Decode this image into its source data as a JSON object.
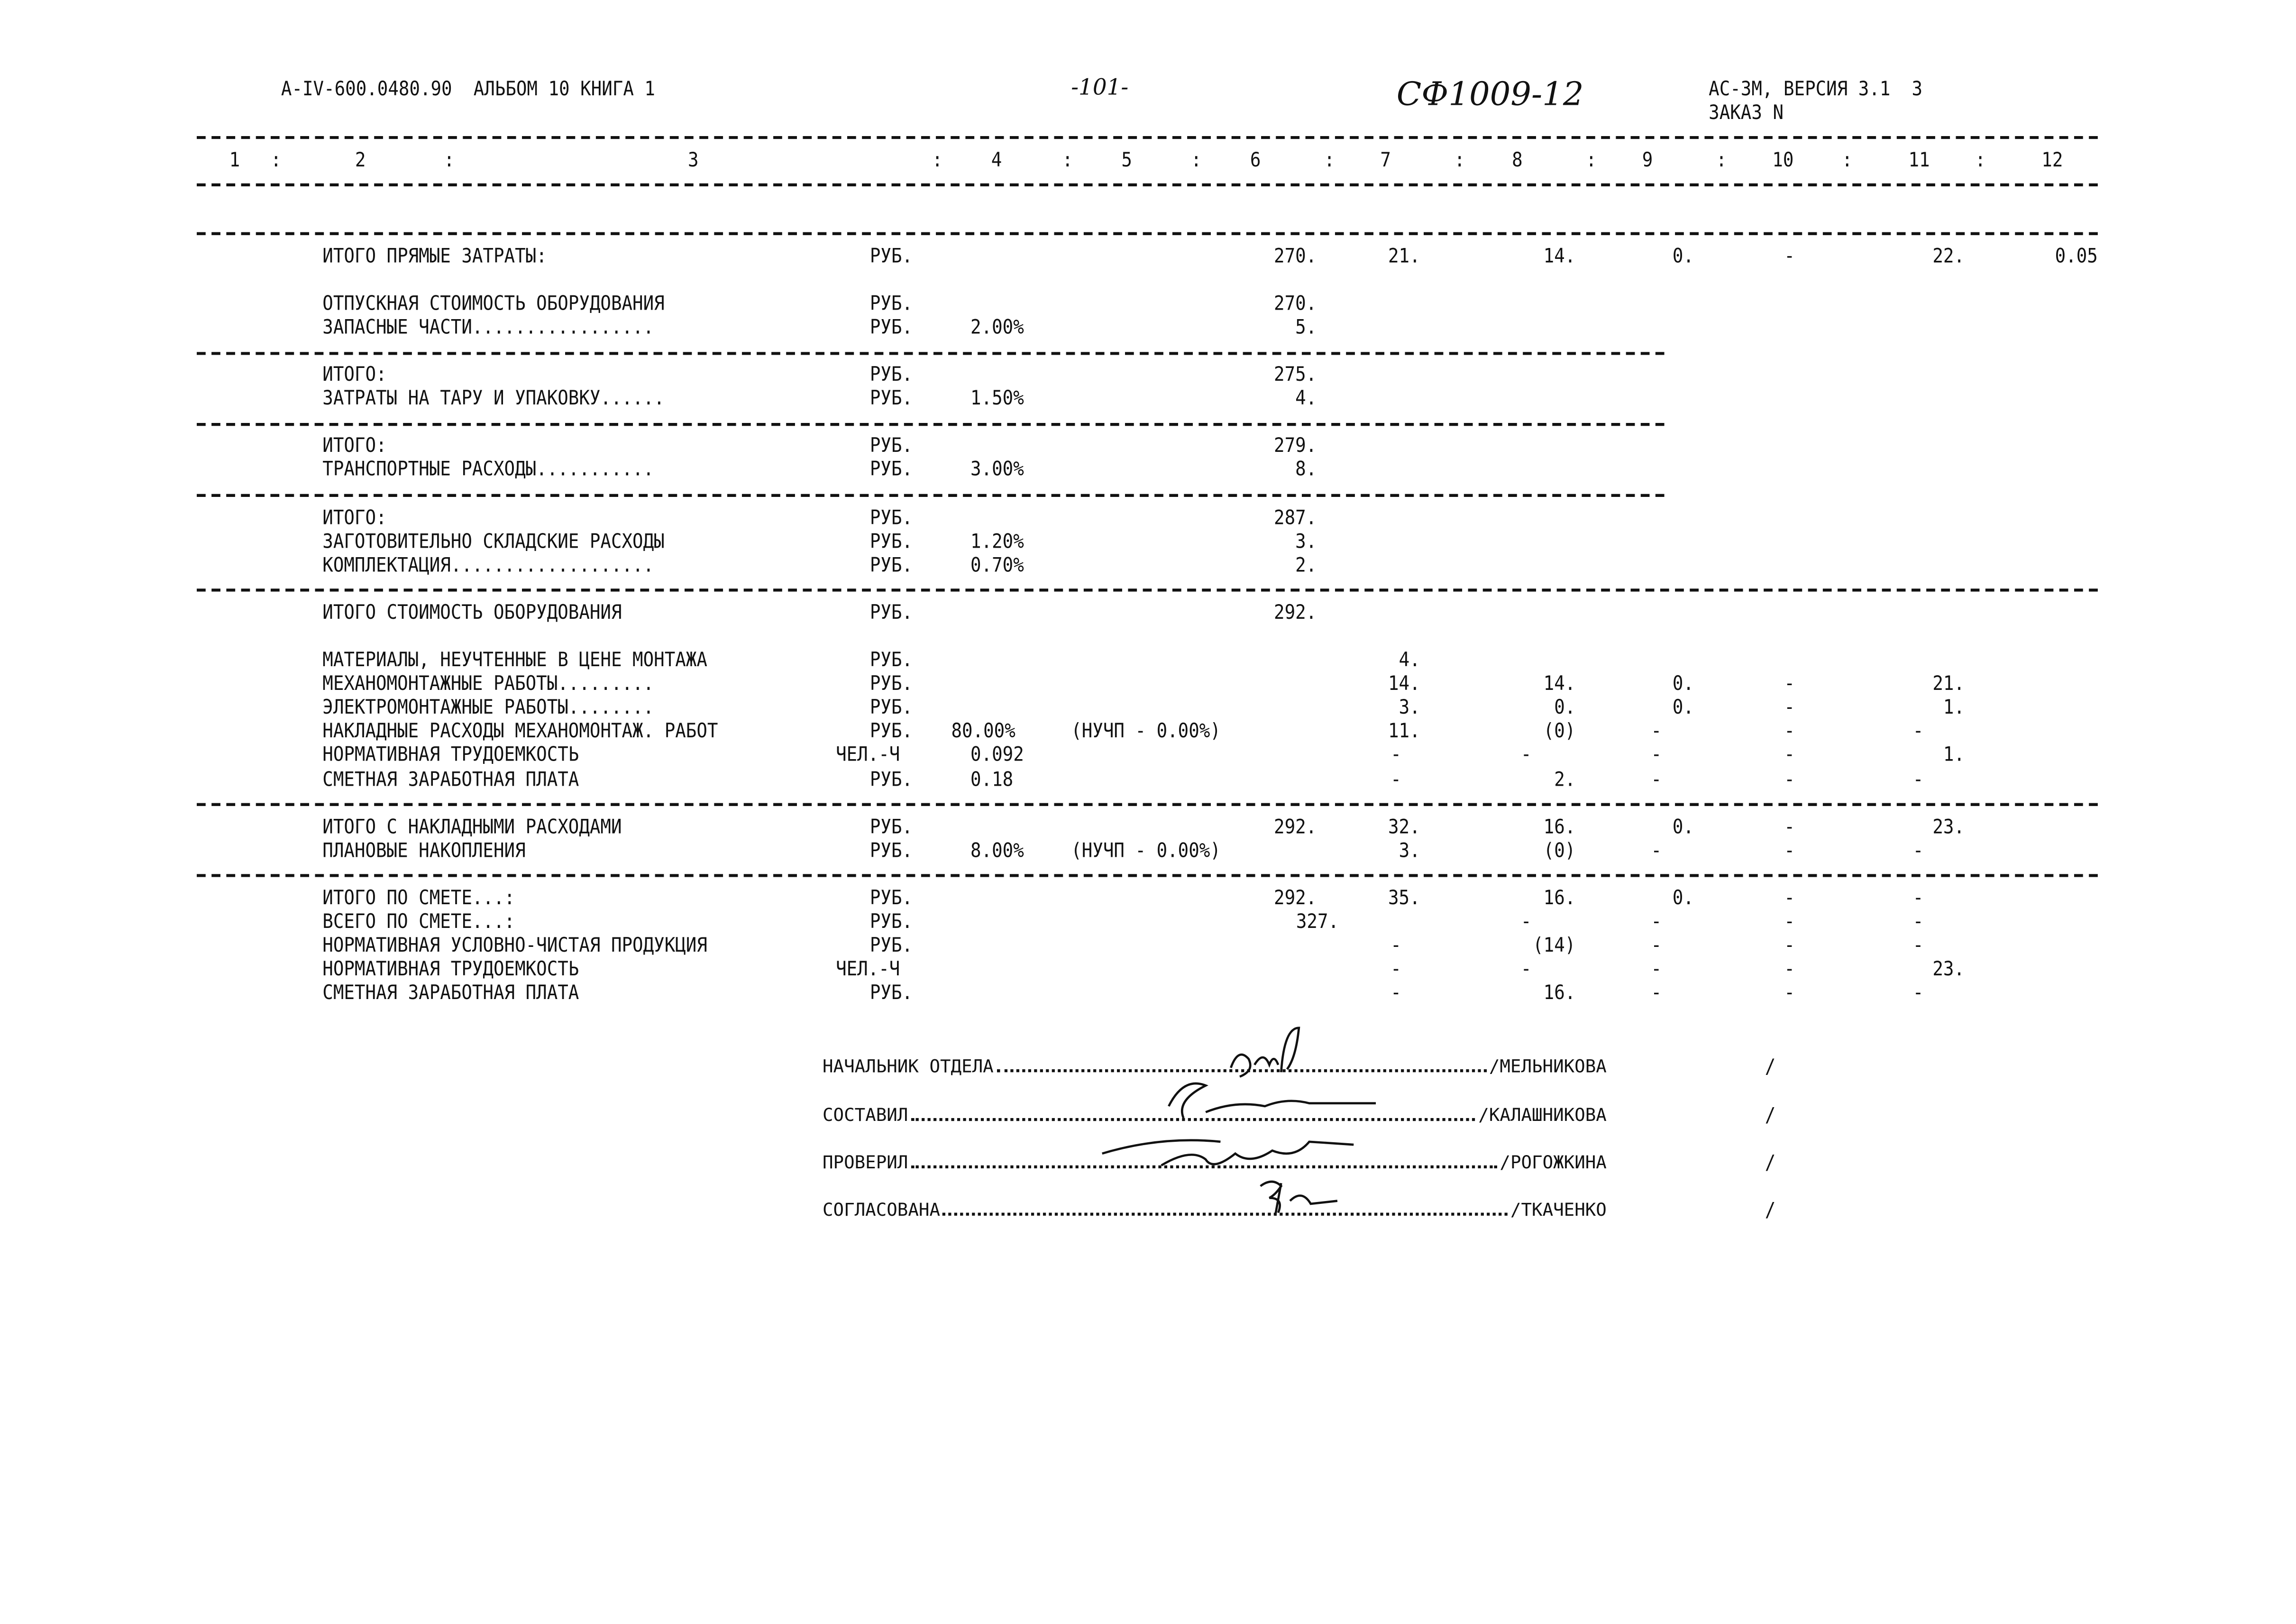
{
  "header": {
    "code": "A-IV-600.0480.90  АЛЬБОМ 10 КНИГА 1",
    "page_number": "-101-",
    "doc_id": "СФ1009-12",
    "version": "АС-3М, ВЕРСИЯ 3.1  3",
    "order": "ЗАКАЗ N"
  },
  "columns": [
    "1",
    "2",
    "3",
    "4",
    "5",
    "6",
    "7",
    "8",
    "9",
    "10",
    "11",
    "12"
  ],
  "rows": [
    {
      "label": "ИТОГО ПРЯМЫЕ ЗАТРАТЫ:",
      "unit": "РУБ.",
      "pct": "",
      "note": "",
      "c6": "270.",
      "c7": "21.",
      "c8": "14.",
      "c9": "0.",
      "c10": "-",
      "c11": "22.",
      "c12": "0.05"
    },
    {
      "label": "ОТПУСКНАЯ СТОИМОСТЬ ОБОРУДОВАНИЯ",
      "unit": "РУБ.",
      "pct": "",
      "note": "",
      "c6": "270."
    },
    {
      "label": "ЗАПАСНЫЕ ЧАСТИ.................",
      "unit": "РУБ.",
      "pct": "2.00%",
      "note": "",
      "c6": "5."
    },
    {
      "label": "ИТОГО:",
      "unit": "РУБ.",
      "pct": "",
      "note": "",
      "c6": "275."
    },
    {
      "label": "ЗАТРАТЫ НА ТАРУ И УПАКОВКУ......",
      "unit": "РУБ.",
      "pct": "1.50%",
      "note": "",
      "c6": "4."
    },
    {
      "label": "ИТОГО:",
      "unit": "РУБ.",
      "pct": "",
      "note": "",
      "c6": "279."
    },
    {
      "label": "ТРАНСПОРТНЫЕ РАСХОДЫ...........",
      "unit": "РУБ.",
      "pct": "3.00%",
      "note": "",
      "c6": "8."
    },
    {
      "label": "ИТОГО:",
      "unit": "РУБ.",
      "pct": "",
      "note": "",
      "c6": "287."
    },
    {
      "label": "ЗАГОТОВИТЕЛЬНО СКЛАДСКИЕ РАСХОДЫ",
      "unit": "РУБ.",
      "pct": "1.20%",
      "note": "",
      "c6": "3."
    },
    {
      "label": "КОМПЛЕКТАЦИЯ...................",
      "unit": "РУБ.",
      "pct": "0.70%",
      "note": "",
      "c6": "2."
    },
    {
      "label": "ИТОГО СТОИМОСТЬ ОБОРУДОВАНИЯ",
      "unit": "РУБ.",
      "pct": "",
      "note": "",
      "c6": "292."
    },
    {
      "label": "МАТЕРИАЛЫ, НЕУЧТЕННЫЕ В ЦЕНЕ МОНТАЖА",
      "unit": "РУБ.",
      "pct": "",
      "note": "",
      "c7": "4."
    },
    {
      "label": "МЕХАНОМОНТАЖНЫЕ РАБОТЫ.........",
      "unit": "РУБ.",
      "pct": "",
      "note": "",
      "c7": "14.",
      "c8": "14.",
      "c9": "0.",
      "c10": "-",
      "c11": "21."
    },
    {
      "label": "ЭЛЕКТРОМОНТАЖНЫЕ РАБОТЫ........",
      "unit": "РУБ.",
      "pct": "",
      "note": "",
      "c7": "3.",
      "c8": "0.",
      "c9": "0.",
      "c10": "-",
      "c11": "1."
    },
    {
      "label": "НАКЛАДНЫЕ РАСХОДЫ МЕХАНОМОНТАЖ. РАБОТ",
      "unit": "РУБ.",
      "pct": "80.00%",
      "note": "(НУЧП - 0.00%)",
      "c7": "11.",
      "c8": "(0)",
      "c9": "-",
      "c10": "-",
      "c11": "-"
    },
    {
      "label": "НОРМАТИВНАЯ ТРУДОЕМКОСТЬ",
      "unit": "ЧЕЛ.-Ч",
      "pct": "0.092",
      "note": "",
      "c7": "-",
      "c8": "-",
      "c9": "-",
      "c10": "-",
      "c11": "1."
    },
    {
      "label": "СМЕТНАЯ ЗАРАБОТНАЯ ПЛАТА",
      "unit": "РУБ.",
      "pct": "0.18",
      "note": "",
      "c7": "-",
      "c8": "2.",
      "c9": "-",
      "c10": "-",
      "c11": "-"
    },
    {
      "label": "ИТОГО С НАКЛАДНЫМИ РАСХОДАМИ",
      "unit": "РУБ.",
      "pct": "",
      "note": "",
      "c6": "292.",
      "c7": "32.",
      "c8": "16.",
      "c9": "0.",
      "c10": "-",
      "c11": "23."
    },
    {
      "label": "ПЛАНОВЫЕ НАКОПЛЕНИЯ",
      "unit": "РУБ.",
      "pct": "8.00%",
      "note": "(НУЧП - 0.00%)",
      "c7": "3.",
      "c8": "(0)",
      "c9": "-",
      "c10": "-",
      "c11": "-"
    },
    {
      "label": "ИТОГО ПО СМЕТЕ...:",
      "unit": "РУБ.",
      "pct": "",
      "note": "",
      "c6": "292.",
      "c7": "35.",
      "c8": "16.",
      "c9": "0.",
      "c10": "-",
      "c11": "-"
    },
    {
      "label": "ВСЕГО ПО СМЕТЕ...:",
      "unit": "РУБ.",
      "pct": "",
      "note": "",
      "c6": "327.",
      "c8": "-",
      "c9": "-",
      "c10": "-",
      "c11": "-"
    },
    {
      "label": "НОРМАТИВНАЯ УСЛОВНО-ЧИСТАЯ ПРОДУКЦИЯ",
      "unit": "РУБ.",
      "pct": "",
      "note": "",
      "c7": "-",
      "c8": "(14)",
      "c9": "-",
      "c10": "-",
      "c11": "-"
    },
    {
      "label": "НОРМАТИВНАЯ ТРУДОЕМКОСТЬ",
      "unit": "ЧЕЛ.-Ч",
      "pct": "",
      "note": "",
      "c7": "-",
      "c8": "-",
      "c9": "-",
      "c10": "-",
      "c11": "23."
    },
    {
      "label": "СМЕТНАЯ ЗАРАБОТНАЯ ПЛАТА",
      "unit": "РУБ.",
      "pct": "",
      "note": "",
      "c7": "-",
      "c8": "16.",
      "c9": "-",
      "c10": "-",
      "c11": "-"
    }
  ],
  "signatures": [
    {
      "label": "НАЧАЛЬНИК ОТДЕЛА",
      "name": "/МЕЛЬНИКОВА",
      "end": "/"
    },
    {
      "label": "СОСТАВИЛ",
      "name": "/КАЛАШНИКОВА",
      "end": "/"
    },
    {
      "label": "ПРОВЕРИЛ",
      "name": "/РОГОЖКИНА",
      "end": "/"
    },
    {
      "label": "СОГЛАСОВАНА",
      "name": "/ТКАЧЕНКО",
      "end": "/"
    }
  ]
}
